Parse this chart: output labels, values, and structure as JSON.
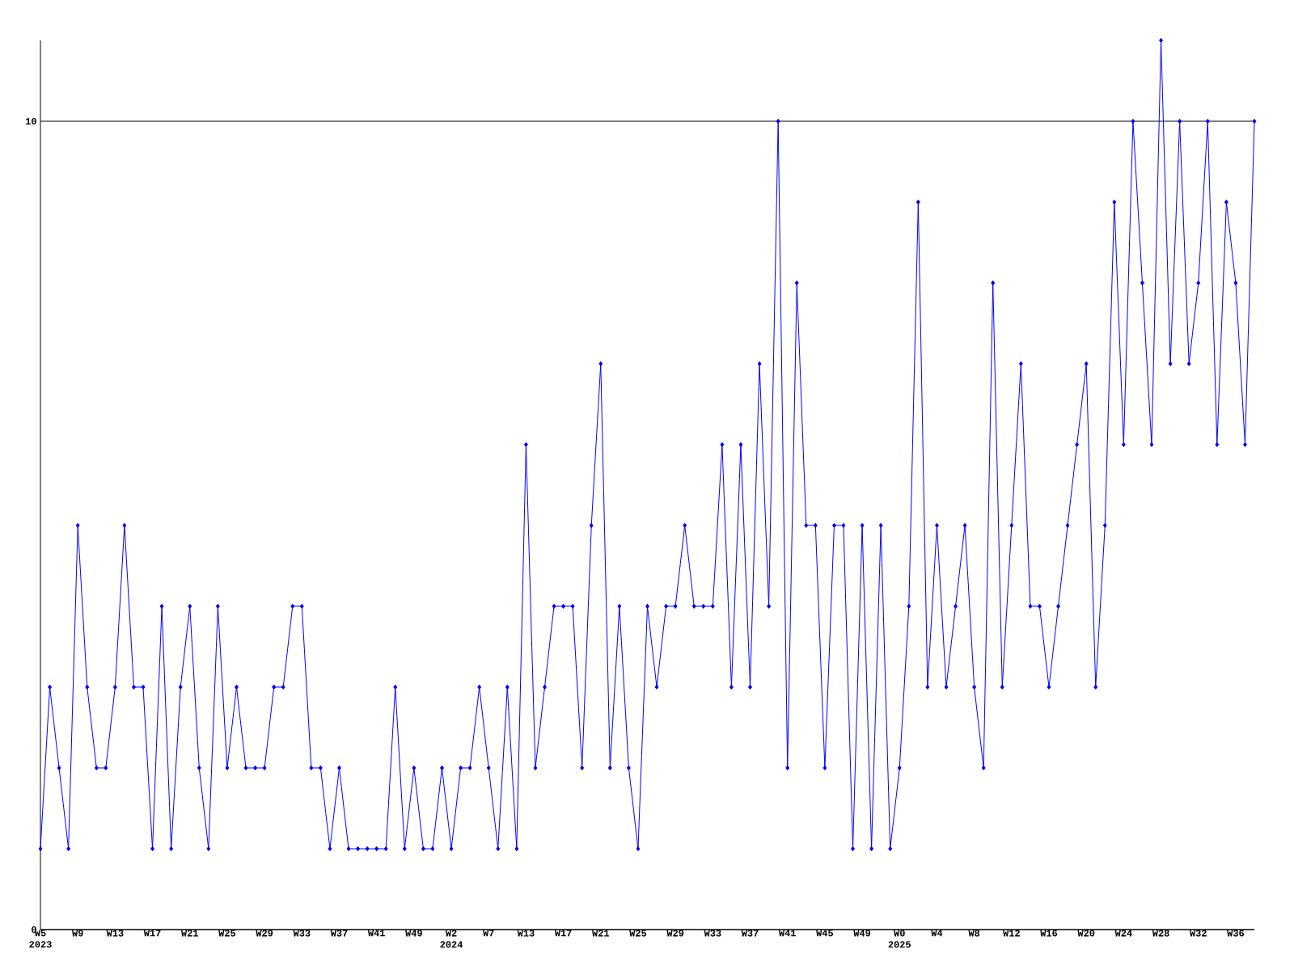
{
  "chart_data": {
    "type": "line",
    "categories": [
      "W5 2023",
      null,
      null,
      null,
      "W9",
      null,
      null,
      null,
      "W13",
      null,
      null,
      null,
      "W17",
      null,
      null,
      null,
      "W21",
      null,
      null,
      null,
      "W25",
      null,
      null,
      null,
      "W29",
      null,
      null,
      null,
      "W33",
      null,
      null,
      null,
      "W37",
      null,
      null,
      null,
      "W41",
      null,
      null,
      null,
      "W49",
      null,
      null,
      null,
      "W2 2024",
      null,
      null,
      null,
      "W7",
      null,
      null,
      null,
      "W13",
      null,
      null,
      null,
      "W17",
      null,
      null,
      null,
      "W21",
      null,
      null,
      null,
      "W25",
      null,
      null,
      null,
      "W29",
      null,
      null,
      null,
      "W33",
      null,
      null,
      null,
      "W37",
      null,
      null,
      null,
      "W41",
      null,
      null,
      null,
      "W45",
      null,
      null,
      null,
      "W49",
      null,
      null,
      null,
      "W0 2025",
      null,
      null,
      null,
      "W4",
      null,
      null,
      null,
      "W8",
      null,
      null,
      null,
      "W12",
      null,
      null,
      null,
      "W16",
      null,
      null,
      null,
      "W20",
      null,
      null,
      null,
      "W24",
      null,
      null,
      null,
      "W28",
      null,
      null,
      null,
      "W32",
      null,
      null,
      null,
      "W36",
      null,
      null
    ],
    "series": [
      {
        "color": "#0000ff",
        "values": [
          1,
          3,
          2,
          1,
          5,
          3,
          2,
          2,
          3,
          5,
          3,
          3,
          1,
          4,
          1,
          3,
          4,
          2,
          1,
          4,
          2,
          3,
          2,
          2,
          2,
          3,
          3,
          4,
          4,
          2,
          2,
          1,
          2,
          1,
          1,
          1,
          1,
          1,
          3,
          1,
          2,
          1,
          1,
          2,
          1,
          2,
          2,
          3,
          2,
          1,
          3,
          1,
          6,
          2,
          3,
          4,
          4,
          4,
          2,
          5,
          7,
          2,
          4,
          2,
          1,
          4,
          3,
          4,
          4,
          5,
          4,
          4,
          4,
          6,
          3,
          6,
          3,
          7,
          4,
          10,
          2,
          8,
          5,
          5,
          2,
          5,
          5,
          1,
          5,
          1,
          5,
          1,
          2,
          4,
          9,
          3,
          5,
          3,
          4,
          5,
          3,
          2,
          8,
          3,
          5,
          7,
          4,
          4,
          3,
          4,
          5,
          6,
          7,
          3,
          5,
          9,
          6,
          10,
          8,
          6,
          11,
          7,
          10,
          7,
          8,
          10,
          6,
          9,
          8,
          6,
          10
        ]
      }
    ],
    "ylim": [
      0,
      11
    ],
    "yticks": [
      0,
      10
    ],
    "grid": "y",
    "marker": "diamond",
    "line_style": "solid"
  }
}
